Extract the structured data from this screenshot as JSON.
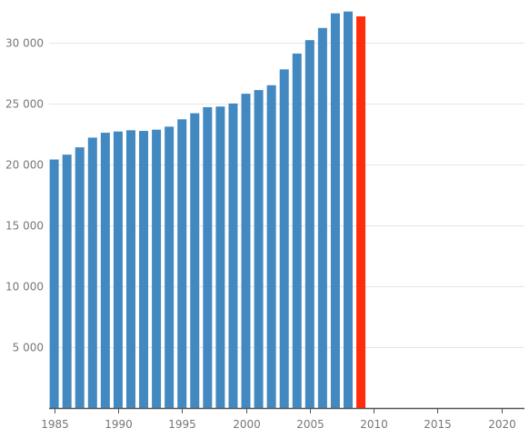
{
  "chart_data": {
    "type": "bar",
    "title": "",
    "xlabel": "",
    "ylabel": "",
    "x": [
      1985,
      1986,
      1987,
      1988,
      1989,
      1990,
      1991,
      1992,
      1993,
      1994,
      1995,
      1996,
      1997,
      1998,
      1999,
      2000,
      2001,
      2002,
      2003,
      2004,
      2005,
      2006,
      2007,
      2008,
      2009
    ],
    "values": [
      20400,
      20800,
      21400,
      22200,
      22600,
      22700,
      22800,
      22750,
      22850,
      23100,
      23700,
      24200,
      24700,
      24750,
      25000,
      25800,
      26100,
      26500,
      27800,
      29100,
      30200,
      31200,
      32400,
      32550,
      32150
    ],
    "highlight_index": 24,
    "xlim": [
      1984.6,
      2021.8
    ],
    "ylim": [
      0,
      32600
    ],
    "x_ticks": [
      1985,
      1990,
      1995,
      2000,
      2005,
      2010,
      2015,
      2020
    ],
    "x_tick_labels": [
      "1985",
      "1990",
      "1995",
      "2000",
      "2005",
      "2010",
      "2015",
      "2020"
    ],
    "y_ticks": [
      5000,
      10000,
      15000,
      20000,
      25000,
      30000
    ],
    "y_tick_labels": [
      "5 000",
      "10 000",
      "15 000",
      "20 000",
      "25 000",
      "30 000"
    ],
    "grid": true,
    "colors": {
      "bar": "#4389c1",
      "highlight": "#ff2d0a",
      "grid": "#e6e6e6",
      "axis": "#555555",
      "tick_label": "#777777"
    }
  }
}
